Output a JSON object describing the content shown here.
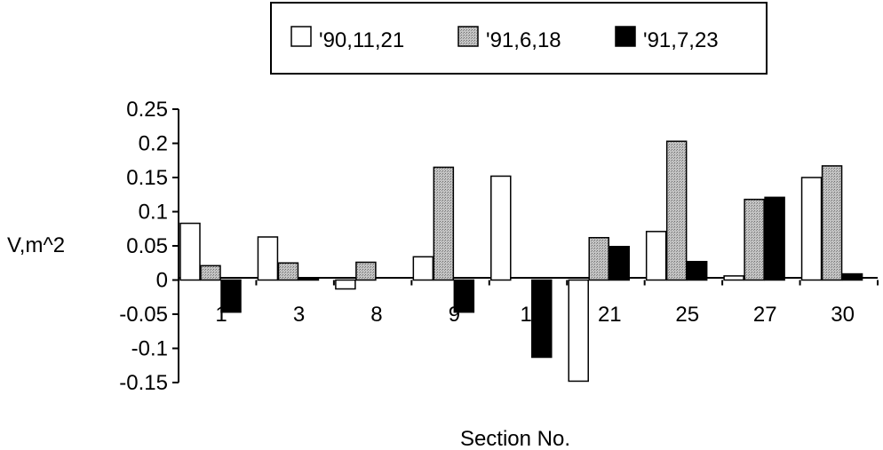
{
  "chart_data": {
    "type": "bar",
    "title": "",
    "xlabel": "Section No.",
    "ylabel": "V,m^2",
    "ylim": [
      -0.15,
      0.25
    ],
    "yticks": [
      0.25,
      0.2,
      0.15,
      0.1,
      0.05,
      0,
      -0.05,
      -0.1,
      -0.15
    ],
    "ytick_labels": [
      "0.25",
      "0.2",
      "0.15",
      "0.1",
      "0.05",
      "0",
      "-0.05",
      "-0.1",
      "-0.15"
    ],
    "categories": [
      "1",
      "3",
      "8",
      "9",
      "14",
      "21",
      "25",
      "27",
      "30"
    ],
    "legend_position": "top-center",
    "grid": false,
    "series": [
      {
        "name": "'90,11,21",
        "color": "#ffffff",
        "pattern": "white",
        "values": [
          0.083,
          0.063,
          -0.013,
          0.034,
          0.152,
          -0.148,
          0.071,
          0.006,
          0.15
        ]
      },
      {
        "name": "'91,6,18",
        "color": "#b8b8b8",
        "pattern": "dotted-gray",
        "values": [
          0.021,
          0.025,
          0.026,
          0.165,
          0.0,
          0.062,
          0.203,
          0.118,
          0.167
        ]
      },
      {
        "name": "'91,7,23",
        "color": "#000000",
        "pattern": "black",
        "values": [
          -0.047,
          0.002,
          0.0,
          -0.047,
          -0.113,
          0.049,
          0.027,
          0.121,
          0.009
        ]
      }
    ]
  }
}
